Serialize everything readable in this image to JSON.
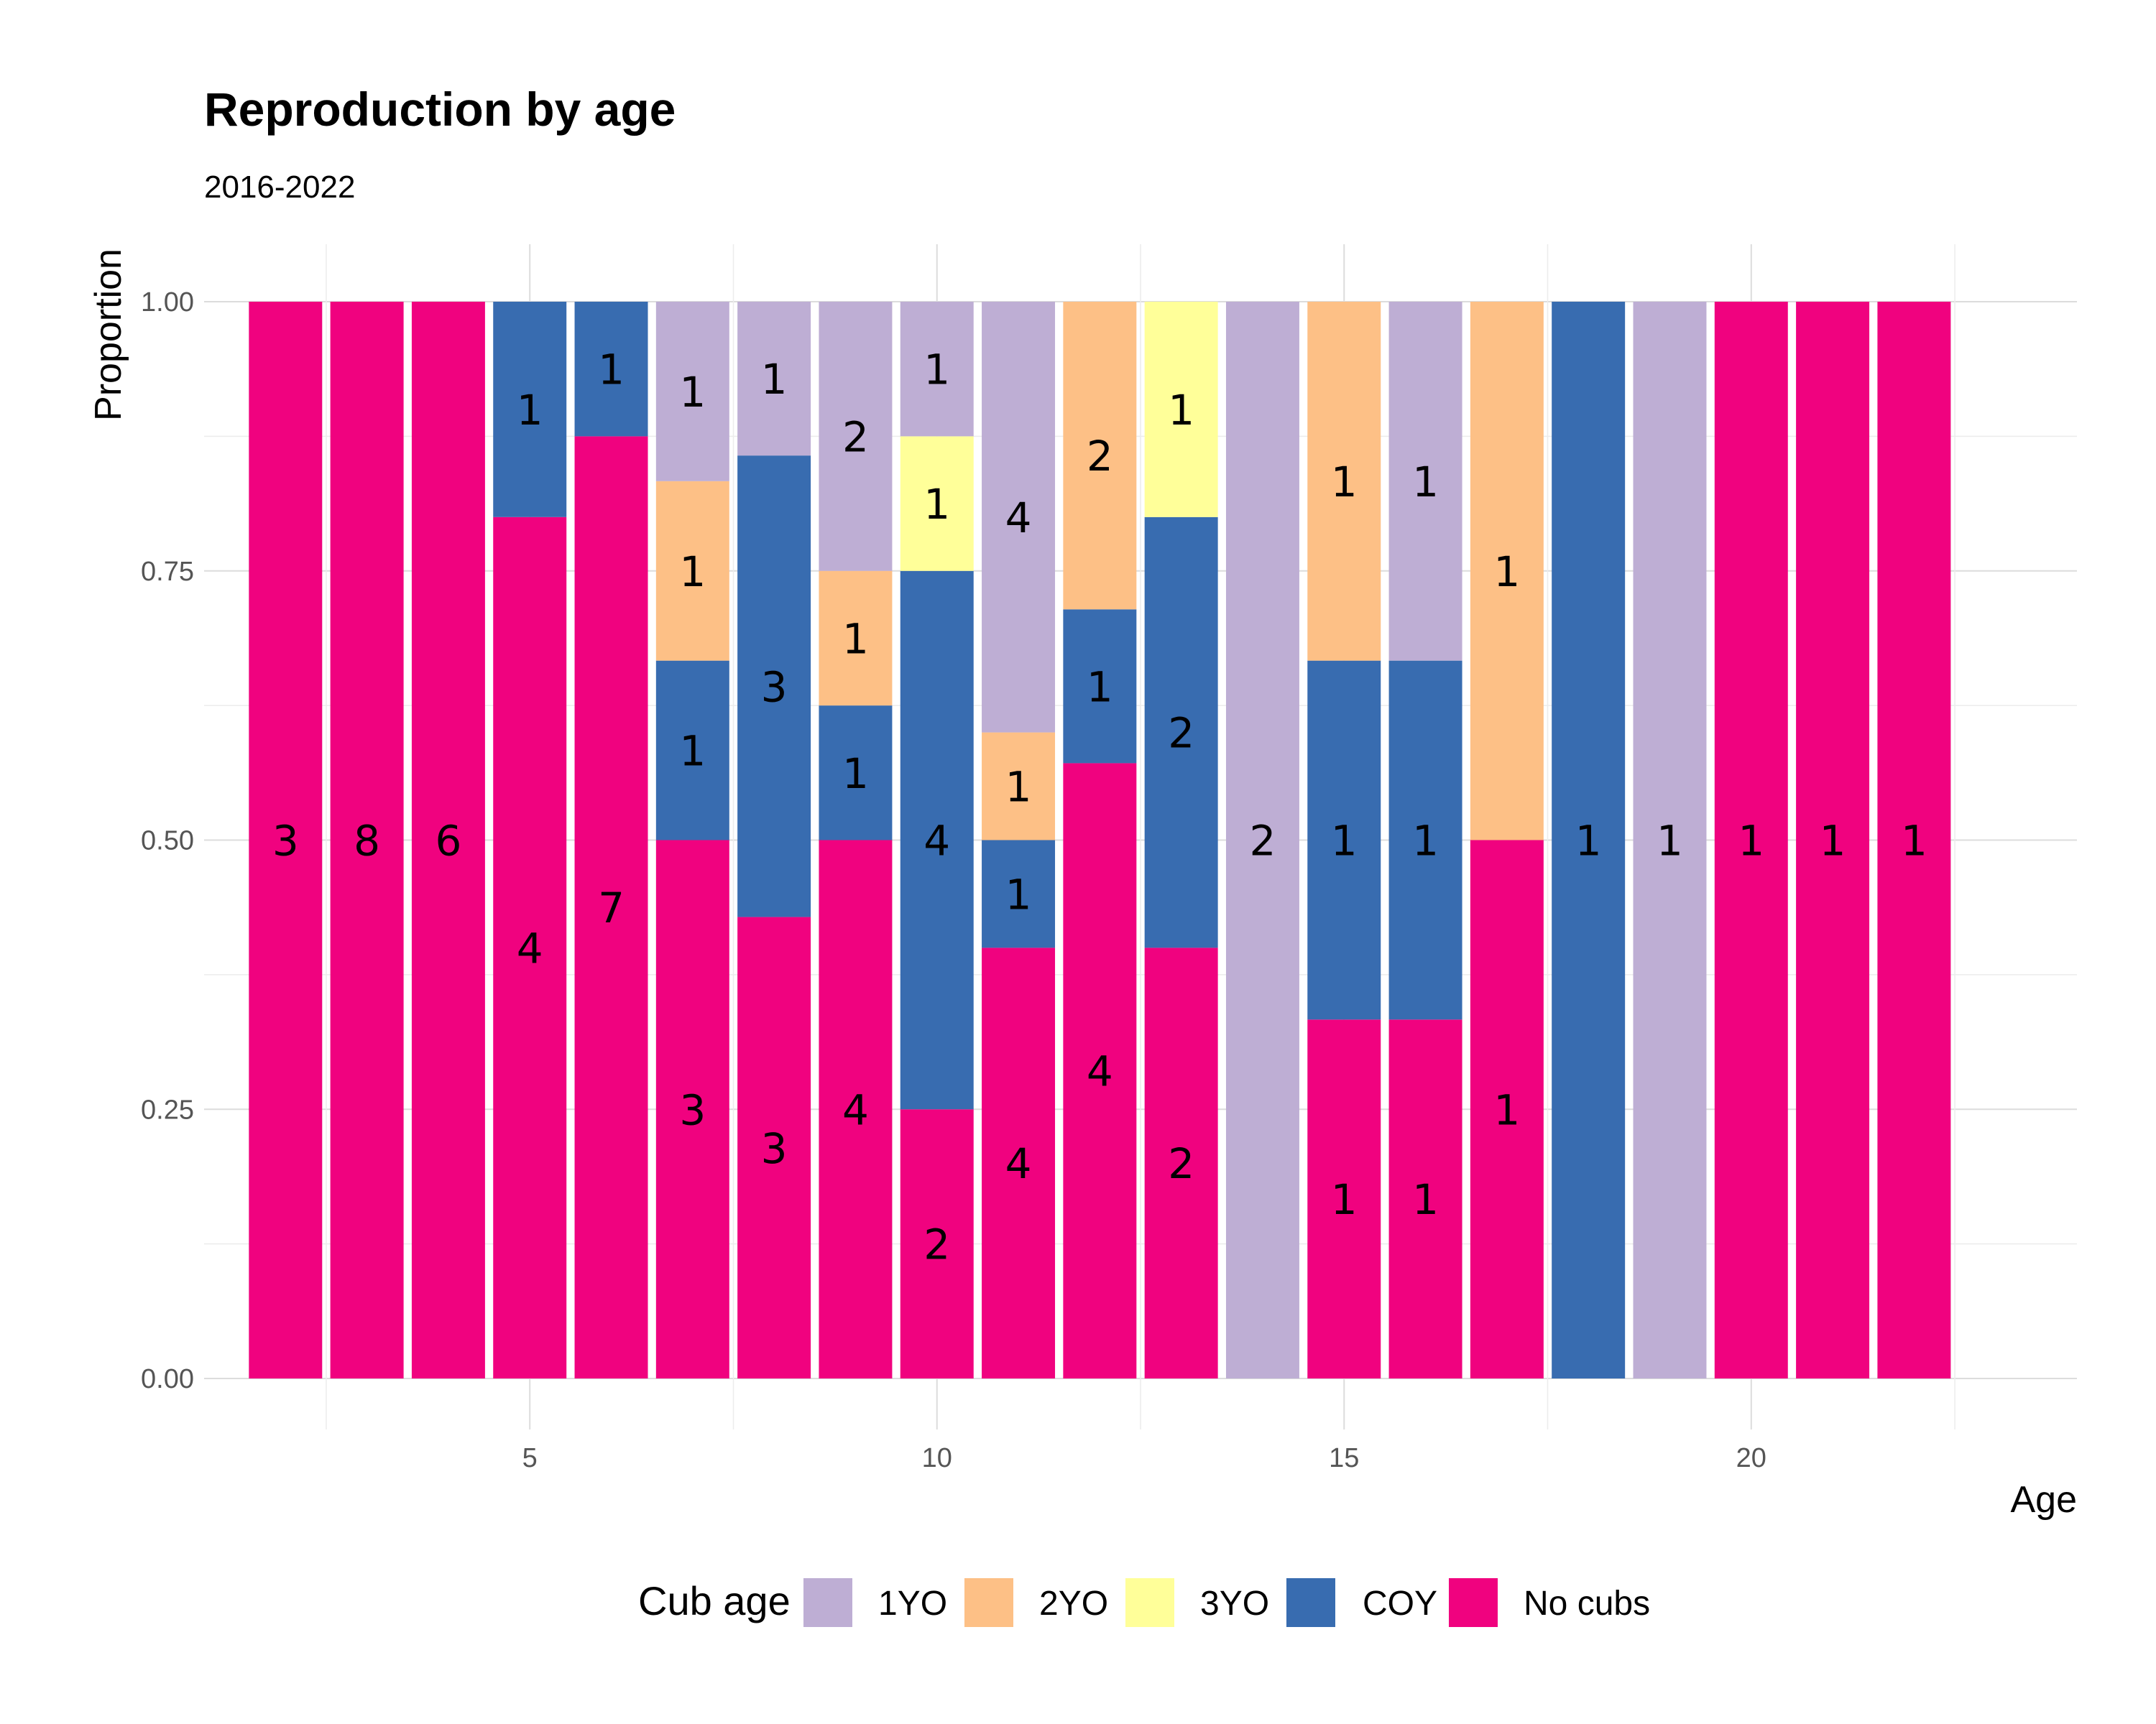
{
  "chart_data": {
    "type": "bar",
    "stacked": true,
    "normalized": true,
    "title": "Reproduction by age",
    "subtitle": "2016-2022",
    "xlabel": "Age",
    "ylabel": "Proportion",
    "xlim": [
      1,
      24
    ],
    "ylim": [
      0,
      1
    ],
    "x_ticks": [
      5,
      10,
      15,
      20
    ],
    "y_ticks": [
      0.0,
      0.25,
      0.5,
      0.75,
      1.0
    ],
    "y_tick_labels": [
      "0.00",
      "0.25",
      "0.50",
      "0.75",
      "1.00"
    ],
    "legend": {
      "title": "Cub age",
      "position": "bottom",
      "entries": [
        {
          "name": "1YO",
          "color": "#BEAED4"
        },
        {
          "name": "2YO",
          "color": "#FDC086"
        },
        {
          "name": "3YO",
          "color": "#FFFF99"
        },
        {
          "name": "COY",
          "color": "#386CB0"
        },
        {
          "name": "No cubs",
          "color": "#F0027F"
        }
      ]
    },
    "stack_order_bottom_to_top": [
      "No cubs",
      "COY",
      "3YO",
      "2YO",
      "1YO"
    ],
    "bars": [
      {
        "age": 2,
        "counts": {
          "No cubs": 3
        }
      },
      {
        "age": 3,
        "counts": {
          "No cubs": 8
        }
      },
      {
        "age": 4,
        "counts": {
          "No cubs": 6
        }
      },
      {
        "age": 5,
        "counts": {
          "No cubs": 4,
          "COY": 1
        }
      },
      {
        "age": 6,
        "counts": {
          "No cubs": 7,
          "COY": 1
        }
      },
      {
        "age": 7,
        "counts": {
          "No cubs": 3,
          "COY": 1,
          "2YO": 1,
          "1YO": 1
        }
      },
      {
        "age": 8,
        "counts": {
          "No cubs": 3,
          "COY": 3,
          "1YO": 1
        }
      },
      {
        "age": 9,
        "counts": {
          "No cubs": 4,
          "COY": 1,
          "2YO": 1,
          "1YO": 2
        }
      },
      {
        "age": 10,
        "counts": {
          "No cubs": 2,
          "COY": 4,
          "3YO": 1,
          "1YO": 1
        }
      },
      {
        "age": 11,
        "counts": {
          "No cubs": 4,
          "COY": 1,
          "2YO": 1,
          "1YO": 4
        }
      },
      {
        "age": 12,
        "counts": {
          "No cubs": 4,
          "COY": 1,
          "2YO": 2
        }
      },
      {
        "age": 13,
        "counts": {
          "No cubs": 2,
          "COY": 2,
          "3YO": 1
        }
      },
      {
        "age": 14,
        "counts": {
          "1YO": 2
        }
      },
      {
        "age": 15,
        "counts": {
          "No cubs": 1,
          "COY": 1,
          "2YO": 1
        }
      },
      {
        "age": 16,
        "counts": {
          "No cubs": 1,
          "COY": 1,
          "1YO": 1
        }
      },
      {
        "age": 17,
        "counts": {
          "No cubs": 1,
          "2YO": 1
        }
      },
      {
        "age": 18,
        "counts": {
          "COY": 1
        }
      },
      {
        "age": 19,
        "counts": {
          "1YO": 1
        }
      },
      {
        "age": 20,
        "counts": {
          "No cubs": 1
        }
      },
      {
        "age": 21,
        "counts": {
          "No cubs": 1
        }
      },
      {
        "age": 22,
        "counts": {
          "No cubs": 1
        }
      }
    ]
  }
}
